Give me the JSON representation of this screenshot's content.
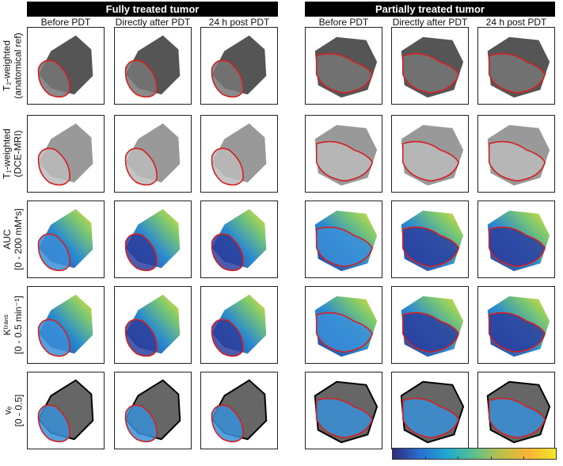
{
  "groups": [
    {
      "title": "Fully treated tumor"
    },
    {
      "title": "Partially treated tumor"
    }
  ],
  "columns": [
    "Before PDT",
    "Directly after PDT",
    "24 h post PDT"
  ],
  "rows": [
    {
      "line1": "T₂-weighted",
      "line2": "(anatomical ref)",
      "kind": "gray",
      "tone": "#555"
    },
    {
      "line1": "T₁-weighted",
      "line2": "(DCE-MRI)",
      "kind": "gray",
      "tone": "#999"
    },
    {
      "line1": "AUC",
      "line2": "[0 - 200 mM*s]",
      "kind": "map"
    },
    {
      "line1": "Kᵗʳᵃⁿˢ",
      "line2": "[0 - 0.5 min⁻¹]",
      "kind": "map"
    },
    {
      "line1": "vₑ",
      "line2": "[0 - 0.5]",
      "kind": "ve"
    }
  ],
  "colors": {
    "roi_outline": "#d42020",
    "colormap": "parula"
  }
}
